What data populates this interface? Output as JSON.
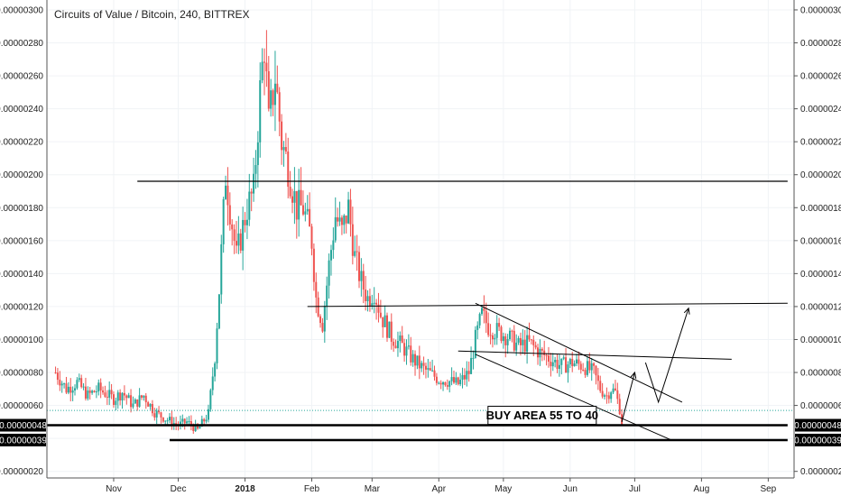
{
  "chart_data": {
    "type": "candlestick",
    "title": "Circuits of Value / Bitcoin, 240, BITTREX",
    "y_axis": {
      "ylim": [
        1.6e-07,
        3.06e-06
      ],
      "ticks": [
        "0.00000020",
        "0.00000040",
        "0.00000060",
        "0.00000080",
        "0.00000100",
        "0.00000120",
        "0.00000140",
        "0.00000160",
        "0.00000180",
        "0.00000200",
        "0.00000220",
        "0.00000240",
        "0.00000260",
        "0.00000280",
        "0.00000300"
      ],
      "tick_values": [
        20,
        40,
        60,
        80,
        100,
        120,
        140,
        160,
        180,
        200,
        220,
        240,
        260,
        280,
        300
      ],
      "price_labels": [
        {
          "text": "0.00000048",
          "value": 48
        },
        {
          "text": "0.00000039",
          "value": 39
        }
      ],
      "sides": [
        "left",
        "right"
      ]
    },
    "x_axis": {
      "ticks": [
        "Nov",
        "Dec",
        "2018",
        "Feb",
        "Mar",
        "Apr",
        "May",
        "Jun",
        "Jul",
        "Aug",
        "Sep"
      ],
      "tick_dates": [
        "2017-11-01",
        "2017-12-01",
        "2018-01-01",
        "2018-02-01",
        "2018-03-01",
        "2018-04-01",
        "2018-05-01",
        "2018-06-01",
        "2018-07-01",
        "2018-08-01",
        "2018-09-01"
      ],
      "bold_ticks": [
        "2018"
      ]
    },
    "price_path": [
      [
        "2017-10-05",
        80
      ],
      [
        "2017-10-10",
        70
      ],
      [
        "2017-10-15",
        74
      ],
      [
        "2017-10-20",
        66
      ],
      [
        "2017-10-25",
        70
      ],
      [
        "2017-11-01",
        64
      ],
      [
        "2017-11-05",
        68
      ],
      [
        "2017-11-10",
        60
      ],
      [
        "2017-11-15",
        66
      ],
      [
        "2017-11-20",
        56
      ],
      [
        "2017-11-25",
        52
      ],
      [
        "2017-12-01",
        48
      ],
      [
        "2017-12-05",
        50
      ],
      [
        "2017-12-10",
        45
      ],
      [
        "2017-12-15",
        55
      ],
      [
        "2017-12-18",
        90
      ],
      [
        "2017-12-20",
        130
      ],
      [
        "2017-12-23",
        200
      ],
      [
        "2017-12-26",
        170
      ],
      [
        "2017-12-28",
        150
      ],
      [
        "2018-01-02",
        180
      ],
      [
        "2018-01-05",
        190
      ],
      [
        "2018-01-08",
        250
      ],
      [
        "2018-01-10",
        280
      ],
      [
        "2018-01-12",
        230
      ],
      [
        "2018-01-15",
        260
      ],
      [
        "2018-01-18",
        220
      ],
      [
        "2018-01-21",
        205
      ],
      [
        "2018-01-25",
        180
      ],
      [
        "2018-01-28",
        180
      ],
      [
        "2018-02-01",
        160
      ],
      [
        "2018-02-03",
        125
      ],
      [
        "2018-02-06",
        110
      ],
      [
        "2018-02-09",
        145
      ],
      [
        "2018-02-12",
        175
      ],
      [
        "2018-02-15",
        165
      ],
      [
        "2018-02-18",
        180
      ],
      [
        "2018-02-21",
        150
      ],
      [
        "2018-02-24",
        135
      ],
      [
        "2018-02-27",
        125
      ],
      [
        "2018-03-02",
        130
      ],
      [
        "2018-03-05",
        115
      ],
      [
        "2018-03-10",
        102
      ],
      [
        "2018-03-15",
        96
      ],
      [
        "2018-03-20",
        88
      ],
      [
        "2018-03-25",
        82
      ],
      [
        "2018-04-01",
        76
      ],
      [
        "2018-04-05",
        75
      ],
      [
        "2018-04-10",
        73
      ],
      [
        "2018-04-15",
        80
      ],
      [
        "2018-04-18",
        100
      ],
      [
        "2018-04-21",
        115
      ],
      [
        "2018-04-24",
        108
      ],
      [
        "2018-04-28",
        105
      ],
      [
        "2018-05-03",
        102
      ],
      [
        "2018-05-08",
        96
      ],
      [
        "2018-05-13",
        98
      ],
      [
        "2018-05-18",
        92
      ],
      [
        "2018-05-23",
        88
      ],
      [
        "2018-05-28",
        84
      ],
      [
        "2018-06-02",
        86
      ],
      [
        "2018-06-07",
        84
      ],
      [
        "2018-06-12",
        80
      ],
      [
        "2018-06-15",
        70
      ],
      [
        "2018-06-18",
        66
      ],
      [
        "2018-06-20",
        70
      ],
      [
        "2018-06-22",
        68
      ],
      [
        "2018-06-24",
        58
      ],
      [
        "2018-06-25",
        50
      ]
    ],
    "price_line_color": "#26a69a",
    "up_color": "#26a69a",
    "down_color": "#ef5350",
    "horizontal_lines": [
      {
        "value": 196,
        "from": "2017-11-12",
        "to": "2018-09-10"
      },
      {
        "value": 48,
        "from": "2017-10-01",
        "to": "2018-09-10"
      },
      {
        "value": 39,
        "from": "2017-11-27",
        "to": "2018-09-10"
      }
    ],
    "trend_lines": [
      {
        "from": [
          "2018-01-30",
          120
        ],
        "to": [
          "2018-09-10",
          122
        ]
      },
      {
        "from": [
          "2018-04-10",
          93
        ],
        "to": [
          "2018-08-15",
          88
        ]
      },
      {
        "from": [
          "2018-04-18",
          122
        ],
        "to": [
          "2018-07-23",
          62
        ]
      },
      {
        "from": [
          "2018-04-18",
          91
        ],
        "to": [
          "2018-07-18",
          39
        ]
      }
    ],
    "arrows": [
      {
        "points": [
          [
            "2018-06-25",
            50
          ],
          [
            "2018-07-01",
            80
          ]
        ]
      },
      {
        "points": [
          [
            "2018-07-06",
            86
          ],
          [
            "2018-07-12",
            62
          ],
          [
            "2018-07-26",
            119
          ]
        ]
      }
    ],
    "annotation": {
      "text": "BUY AREA 55 TO 40",
      "date": "2018-05-19",
      "value": 54
    },
    "dotted_line_value": 57,
    "grid": true
  }
}
